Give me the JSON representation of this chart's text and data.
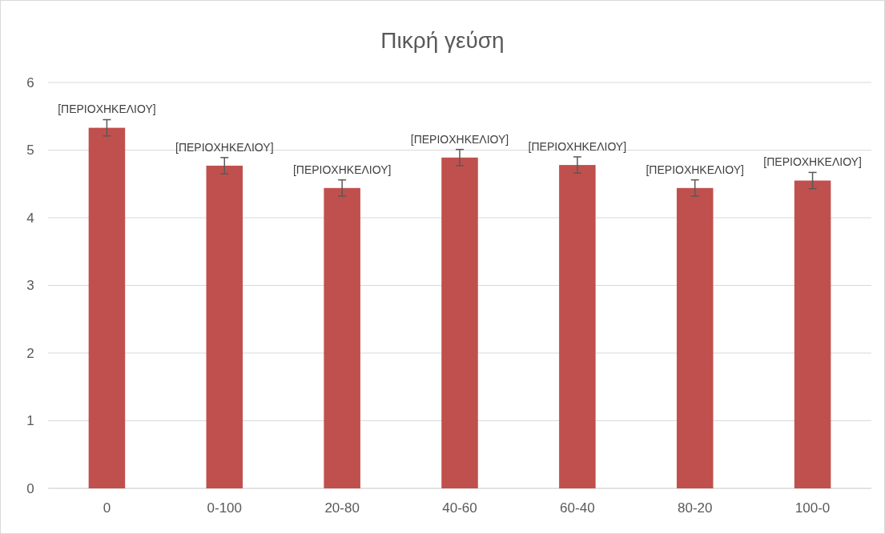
{
  "chart_data": {
    "type": "bar",
    "title": "Πικρή γεύση",
    "categories": [
      "0",
      "0-100",
      "20-80",
      "40-60",
      "60-40",
      "80-20",
      "100-0"
    ],
    "values": [
      5.33,
      4.77,
      4.44,
      4.89,
      4.78,
      4.44,
      4.55
    ],
    "errors": [
      0.12,
      0.12,
      0.12,
      0.12,
      0.12,
      0.12,
      0.12
    ],
    "value_labels": [
      "[ΠΕΡΙΟΧΗΚΕΛΙΟΥ]",
      "[ΠΕΡΙΟΧΗΚΕΛΙΟΥ]",
      "[ΠΕΡΙΟΧΗΚΕΛΙΟΥ]",
      "[ΠΕΡΙΟΧΗΚΕΛΙΟΥ]",
      "[ΠΕΡΙΟΧΗΚΕΛΙΟΥ]",
      "[ΠΕΡΙΟΧΗΚΕΛΙΟΥ]",
      "[ΠΕΡΙΟΧΗΚΕΛΙΟΥ]"
    ],
    "color": "#c0504d",
    "ylim": [
      0,
      6
    ],
    "yticks": [
      0,
      1,
      2,
      3,
      4,
      5,
      6
    ],
    "grid": "y"
  }
}
